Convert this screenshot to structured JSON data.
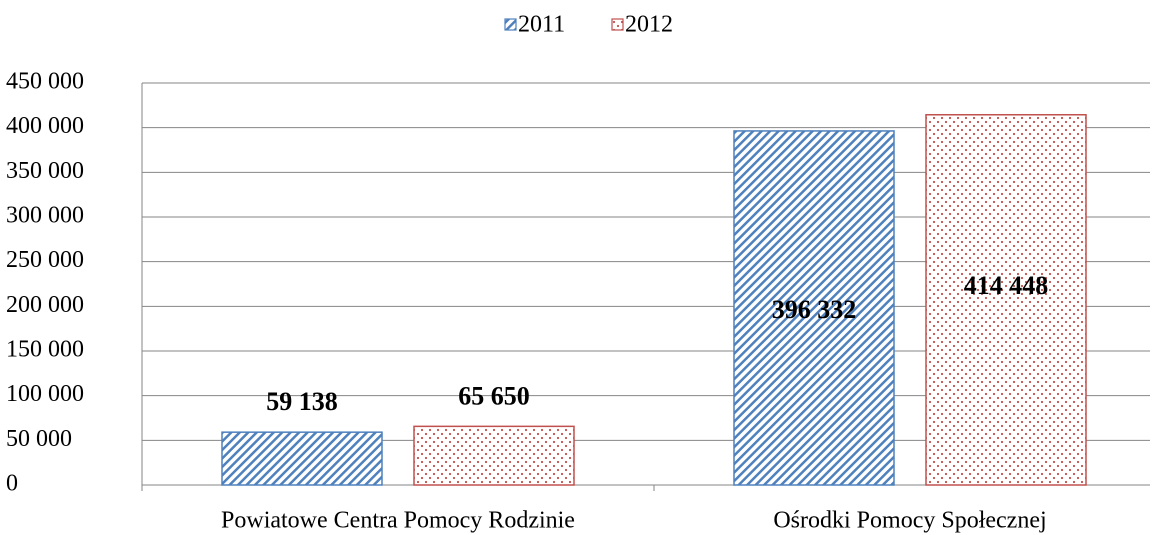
{
  "chart_data": {
    "type": "bar",
    "categories": [
      "Powiatowe Centra Pomocy Rodzinie",
      "Ośrodki Pomocy Społecznej"
    ],
    "series": [
      {
        "name": "2011",
        "color": "#4f81bd",
        "values": [
          59138,
          396332
        ],
        "value_labels": [
          "59 138",
          "396 332"
        ]
      },
      {
        "name": "2012",
        "color": "#c0504d",
        "values": [
          65650,
          414448
        ],
        "value_labels": [
          "65 650",
          "414 448"
        ]
      }
    ],
    "ylim": [
      0,
      450000
    ],
    "yticks": [
      0,
      {
        "value": 50000,
        "label": "50 000"
      },
      {
        "value": 100000,
        "label": "100 000"
      },
      {
        "value": 150000,
        "label": "150 000"
      },
      {
        "value": 200000,
        "label": "200 000"
      },
      {
        "value": 250000,
        "label": "250 000"
      },
      {
        "value": 300000,
        "label": "300 000"
      },
      {
        "value": 350000,
        "label": "350 000"
      },
      {
        "value": 400000,
        "label": "400 000"
      },
      {
        "value": 450000,
        "label": "450 000"
      }
    ],
    "grid": true,
    "legend": "top"
  }
}
